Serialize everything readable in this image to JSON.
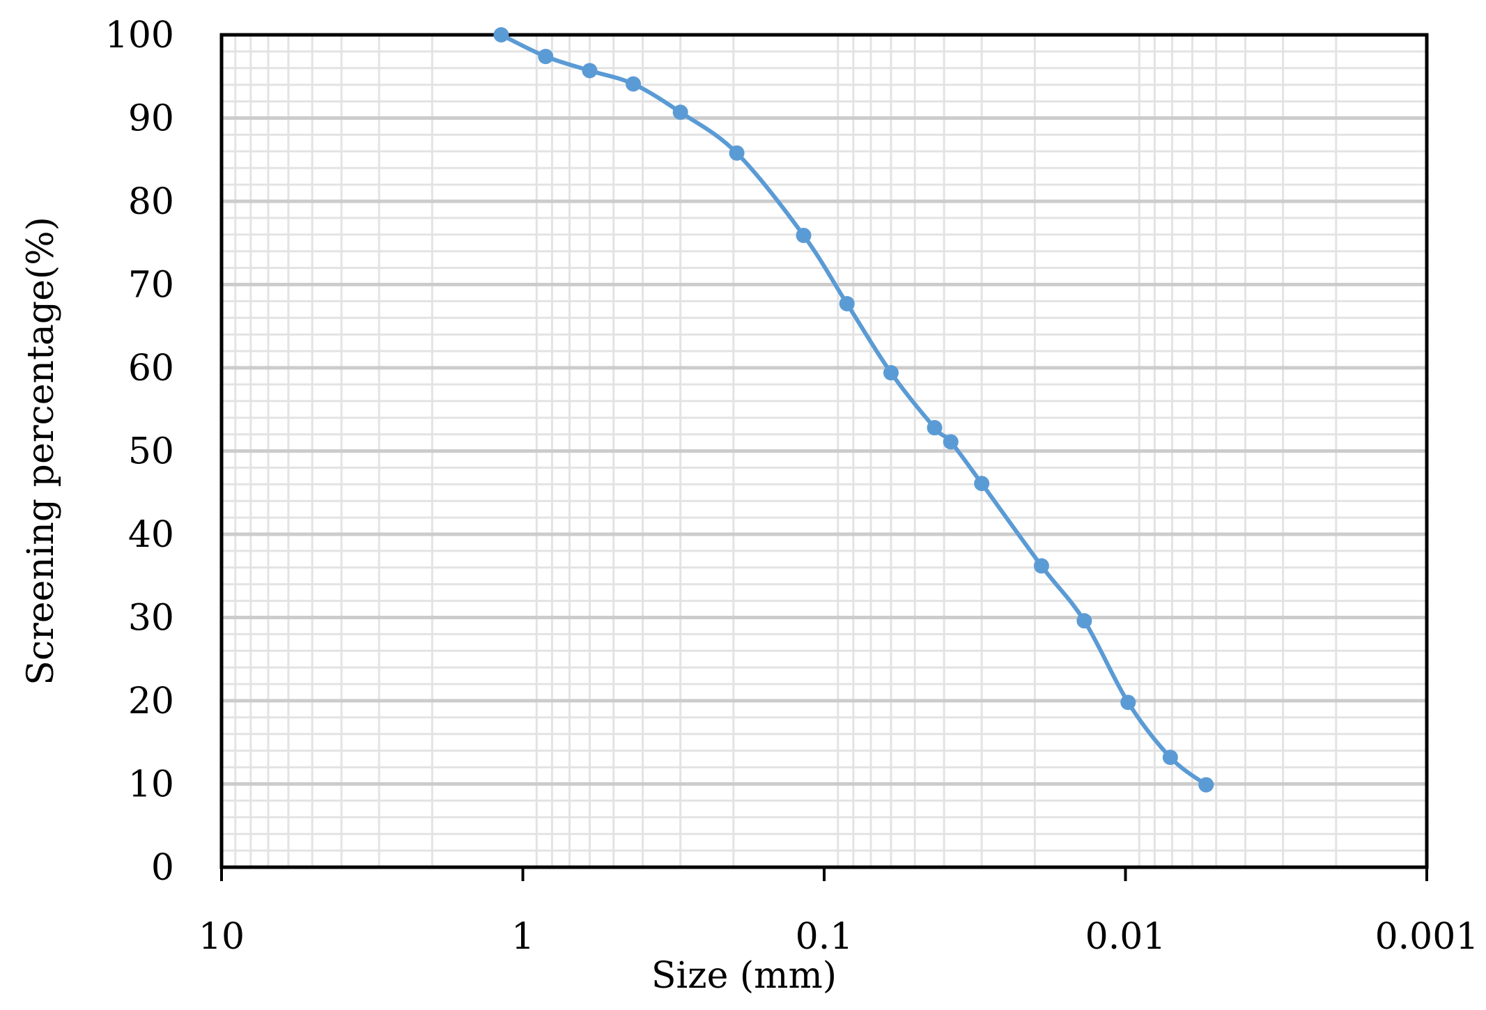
{
  "chart_data": {
    "type": "line",
    "title": "",
    "xlabel": "Size (mm)",
    "ylabel": "Screening percentage(%)",
    "x_scale": "log",
    "x_reversed": true,
    "xlim": [
      10,
      0.001
    ],
    "ylim": [
      0,
      100
    ],
    "x_ticks": [
      "10",
      "1",
      "0.1",
      "0.01",
      "0.001"
    ],
    "y_ticks": [
      "0",
      "10",
      "20",
      "30",
      "40",
      "50",
      "60",
      "70",
      "80",
      "90",
      "100"
    ],
    "grid": true,
    "legend": "none",
    "series": [
      {
        "color": "#5b9bd5",
        "marker": "circle",
        "smooth": true,
        "x": [
          1.18,
          0.84,
          0.6,
          0.43,
          0.3,
          0.195,
          0.117,
          0.084,
          0.06,
          0.043,
          0.038,
          0.03,
          0.019,
          0.0137,
          0.0098,
          0.0071,
          0.0054
        ],
        "y": [
          100,
          97.4,
          95.7,
          94.1,
          90.7,
          85.8,
          75.9,
          67.7,
          59.4,
          52.8,
          51.1,
          46.1,
          36.2,
          29.6,
          19.8,
          13.2,
          9.9
        ]
      }
    ]
  }
}
